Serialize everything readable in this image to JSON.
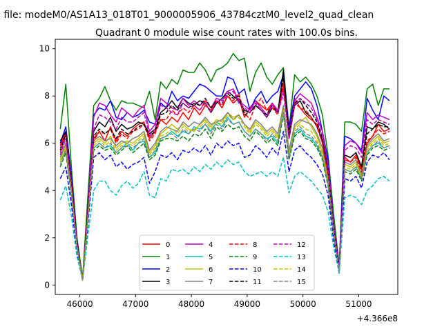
{
  "chart_data": {
    "type": "line",
    "suptitle": "n file: modeM0/AS1A13_018T01_9000005906_43784cztM0_level2_quad_clean",
    "title": "Quadrant 0 module wise count rates with 100.0s bins.",
    "xlabel": "",
    "ylabel": "",
    "x_offset_label": "+4.366e8",
    "xlim": [
      45560,
      51700
    ],
    "ylim": [
      -0.4,
      10.4
    ],
    "x_ticks": [
      {
        "v": 46000,
        "label": "46000"
      },
      {
        "v": 47000,
        "label": "47000"
      },
      {
        "v": 48000,
        "label": "48000"
      },
      {
        "v": 49000,
        "label": "49000"
      },
      {
        "v": 50000,
        "label": "50000"
      },
      {
        "v": 51000,
        "label": "51000"
      }
    ],
    "y_ticks": [
      {
        "v": 0,
        "label": "0"
      },
      {
        "v": 2,
        "label": "2"
      },
      {
        "v": 4,
        "label": "4"
      },
      {
        "v": 6,
        "label": "6"
      },
      {
        "v": 8,
        "label": "8"
      },
      {
        "v": 10,
        "label": "10"
      }
    ],
    "grid": false,
    "legend_placement": "lower-center",
    "x": [
      45650,
      45750,
      45850,
      45950,
      46050,
      46150,
      46250,
      46350,
      46450,
      46550,
      46650,
      46750,
      46850,
      46950,
      47050,
      47150,
      47250,
      47350,
      47450,
      47550,
      47650,
      47750,
      47850,
      47950,
      48050,
      48150,
      48250,
      48350,
      48450,
      48550,
      48650,
      48750,
      48850,
      48950,
      49050,
      49150,
      49250,
      49350,
      49450,
      49550,
      49650,
      49750,
      49850,
      49950,
      50050,
      50150,
      50250,
      50350,
      50450,
      50550,
      50650,
      50750,
      50850,
      50950,
      51050,
      51150,
      51250,
      51350,
      51450,
      51550
    ],
    "series": [
      {
        "name": "0",
        "color": "#ff0000",
        "dash": false,
        "values": [
          5.9,
          6.5,
          4.3,
          1.8,
          0.2,
          3.3,
          6.2,
          6.5,
          6.1,
          6.7,
          6.1,
          6.5,
          6.3,
          6.6,
          6.8,
          6.9,
          6.2,
          6.5,
          7.0,
          6.8,
          7.1,
          6.9,
          7.3,
          7.0,
          7.5,
          7.2,
          7.6,
          7.4,
          7.8,
          7.5,
          8.0,
          7.7,
          7.9,
          7.1,
          7.5,
          7.8,
          7.6,
          7.4,
          7.7,
          7.3,
          8.6,
          6.5,
          7.9,
          7.5,
          7.2,
          7.0,
          6.8,
          6.0,
          4.8,
          2.5,
          0.7,
          5.4,
          5.2,
          5.5,
          4.9,
          6.0,
          6.3,
          6.8,
          6.5,
          6.6
        ]
      },
      {
        "name": "1",
        "color": "#008000",
        "dash": false,
        "values": [
          6.6,
          8.5,
          5.0,
          2.0,
          0.3,
          4.0,
          7.6,
          7.9,
          8.4,
          7.8,
          7.4,
          7.8,
          7.7,
          7.7,
          7.6,
          7.5,
          8.2,
          7.0,
          8.6,
          8.3,
          8.7,
          8.5,
          9.1,
          9.0,
          9.0,
          9.4,
          9.1,
          8.6,
          9.1,
          9.2,
          9.4,
          9.8,
          9.5,
          9.6,
          8.2,
          9.0,
          9.4,
          8.8,
          8.5,
          8.9,
          9.2,
          6.6,
          8.9,
          8.6,
          8.8,
          8.5,
          8.0,
          7.2,
          5.5,
          3.0,
          0.8,
          6.9,
          6.9,
          6.8,
          6.5,
          8.3,
          8.5,
          7.6,
          8.3,
          8.3
        ]
      },
      {
        "name": "2",
        "color": "#0000ff",
        "dash": false,
        "values": [
          6.0,
          6.7,
          4.6,
          1.9,
          0.2,
          3.5,
          7.2,
          7.5,
          7.4,
          7.8,
          7.1,
          7.0,
          7.3,
          7.1,
          7.2,
          7.4,
          6.9,
          6.8,
          7.7,
          7.5,
          8.2,
          7.8,
          8.0,
          7.9,
          8.2,
          8.5,
          8.4,
          8.2,
          8.0,
          8.0,
          8.8,
          8.7,
          8.1,
          8.3,
          7.4,
          7.9,
          8.2,
          7.7,
          8.0,
          8.2,
          8.9,
          6.7,
          8.0,
          8.3,
          8.6,
          8.3,
          7.6,
          6.5,
          5.3,
          2.6,
          0.8,
          6.3,
          6.2,
          6.0,
          5.7,
          7.9,
          7.4,
          7.0,
          8.0,
          7.8
        ]
      },
      {
        "name": "3",
        "color": "#000000",
        "dash": false,
        "values": [
          6.1,
          6.5,
          4.4,
          1.8,
          0.2,
          3.4,
          6.5,
          6.9,
          6.7,
          7.1,
          6.5,
          6.8,
          6.6,
          6.7,
          6.9,
          6.8,
          6.4,
          6.6,
          7.3,
          7.5,
          7.8,
          7.5,
          7.9,
          7.7,
          7.6,
          7.8,
          7.7,
          7.3,
          7.7,
          7.9,
          8.2,
          8.0,
          7.8,
          7.4,
          7.3,
          7.6,
          7.4,
          7.1,
          7.5,
          7.3,
          9.1,
          6.2,
          7.6,
          7.8,
          7.3,
          7.1,
          6.7,
          6.1,
          4.9,
          2.4,
          0.7,
          5.5,
          5.4,
          5.6,
          5.0,
          6.7,
          6.6,
          6.9,
          6.8,
          6.6
        ]
      },
      {
        "name": "4",
        "color": "#bf00bf",
        "dash": false,
        "values": [
          5.8,
          6.4,
          4.4,
          1.8,
          0.2,
          3.4,
          7.1,
          7.7,
          7.6,
          7.2,
          6.9,
          7.5,
          7.3,
          7.1,
          7.4,
          7.6,
          6.5,
          6.8,
          7.9,
          7.7,
          7.5,
          7.4,
          7.9,
          7.6,
          7.8,
          7.6,
          7.8,
          7.5,
          7.9,
          7.8,
          8.2,
          8.3,
          7.8,
          7.6,
          7.4,
          7.8,
          7.5,
          7.2,
          7.7,
          7.4,
          8.3,
          6.4,
          7.8,
          8.1,
          7.9,
          7.7,
          7.1,
          6.5,
          5.1,
          2.6,
          0.7,
          5.9,
          6.1,
          6.0,
          5.6,
          7.3,
          7.0,
          7.2,
          7.1,
          7.0
        ]
      },
      {
        "name": "5",
        "color": "#00bfbf",
        "dash": false,
        "values": [
          5.2,
          5.7,
          3.9,
          1.6,
          0.2,
          3.0,
          5.8,
          6.0,
          5.8,
          5.9,
          5.6,
          5.8,
          6.0,
          5.7,
          6.0,
          6.1,
          5.4,
          5.6,
          6.2,
          6.3,
          6.5,
          6.3,
          6.5,
          6.4,
          6.7,
          6.6,
          6.8,
          6.5,
          6.9,
          6.7,
          7.1,
          6.8,
          6.9,
          6.5,
          6.3,
          6.6,
          6.4,
          6.2,
          6.3,
          6.0,
          7.4,
          5.4,
          6.4,
          6.6,
          6.3,
          6.2,
          5.9,
          5.4,
          4.3,
          2.1,
          0.6,
          4.9,
          4.8,
          5.0,
          4.5,
          5.6,
          5.9,
          6.0,
          5.8,
          5.9
        ]
      },
      {
        "name": "6",
        "color": "#bfbf00",
        "dash": false,
        "values": [
          5.3,
          5.9,
          4.0,
          1.7,
          0.2,
          3.1,
          6.0,
          6.2,
          6.0,
          6.3,
          5.8,
          6.0,
          6.1,
          6.0,
          6.2,
          6.4,
          5.6,
          5.9,
          6.4,
          6.6,
          6.8,
          6.6,
          6.8,
          6.6,
          6.5,
          6.8,
          7.0,
          6.7,
          7.0,
          6.9,
          7.3,
          7.1,
          7.2,
          6.8,
          6.5,
          6.9,
          6.7,
          6.4,
          6.6,
          6.3,
          7.5,
          5.6,
          6.7,
          6.9,
          7.1,
          6.7,
          6.3,
          5.6,
          4.5,
          2.2,
          0.6,
          5.1,
          5.0,
          5.2,
          4.6,
          5.8,
          6.1,
          6.3,
          6.0,
          6.1
        ]
      },
      {
        "name": "7",
        "color": "#808080",
        "dash": false,
        "values": [
          5.4,
          6.0,
          4.1,
          1.7,
          0.2,
          3.1,
          6.1,
          6.3,
          6.1,
          6.2,
          5.9,
          6.1,
          6.0,
          6.2,
          6.3,
          6.5,
          5.7,
          6.0,
          6.5,
          6.7,
          6.6,
          6.5,
          6.9,
          6.7,
          6.9,
          6.8,
          7.1,
          6.8,
          6.9,
          7.0,
          7.3,
          7.0,
          7.2,
          6.8,
          6.6,
          7.0,
          6.8,
          6.5,
          6.7,
          6.4,
          7.6,
          5.7,
          6.8,
          7.0,
          6.9,
          6.8,
          6.4,
          5.8,
          4.6,
          2.3,
          0.6,
          5.2,
          5.1,
          5.3,
          4.7,
          5.9,
          6.2,
          6.4,
          6.1,
          6.2
        ]
      },
      {
        "name": "8",
        "color": "#ff0000",
        "dash": true,
        "values": [
          5.6,
          6.3,
          4.2,
          1.7,
          0.2,
          3.2,
          6.1,
          6.5,
          6.4,
          6.6,
          6.0,
          6.4,
          6.2,
          6.5,
          6.6,
          6.8,
          6.1,
          6.4,
          7.0,
          7.0,
          7.4,
          7.2,
          7.5,
          7.3,
          7.6,
          7.4,
          7.8,
          7.5,
          7.8,
          7.6,
          8.0,
          7.8,
          8.1,
          7.3,
          7.0,
          7.6,
          7.9,
          7.4,
          7.5,
          7.2,
          8.4,
          6.3,
          7.7,
          7.5,
          7.4,
          7.1,
          6.7,
          6.0,
          4.7,
          2.4,
          0.7,
          5.3,
          5.2,
          5.4,
          4.8,
          6.1,
          6.3,
          6.6,
          6.4,
          6.5
        ]
      },
      {
        "name": "9",
        "color": "#008000",
        "dash": true,
        "values": [
          5.0,
          5.6,
          3.8,
          1.6,
          0.2,
          2.9,
          5.7,
          5.9,
          5.7,
          5.8,
          5.5,
          5.7,
          5.9,
          5.6,
          5.8,
          6.0,
          5.3,
          5.5,
          6.1,
          6.2,
          6.2,
          6.1,
          6.3,
          6.1,
          6.4,
          6.3,
          6.6,
          6.2,
          6.7,
          6.5,
          6.8,
          6.6,
          6.7,
          6.3,
          6.1,
          6.5,
          6.3,
          6.0,
          6.2,
          5.9,
          7.2,
          5.3,
          6.3,
          6.5,
          6.2,
          6.1,
          5.8,
          5.3,
          4.2,
          2.1,
          0.6,
          4.8,
          4.7,
          4.9,
          4.4,
          5.5,
          5.8,
          5.9,
          5.7,
          5.8
        ]
      },
      {
        "name": "10",
        "color": "#0000ff",
        "dash": true,
        "values": [
          4.5,
          5.0,
          3.4,
          1.4,
          0.2,
          2.7,
          5.4,
          5.6,
          5.3,
          5.5,
          5.0,
          5.2,
          4.9,
          5.1,
          5.2,
          5.4,
          4.3,
          4.8,
          5.5,
          5.4,
          5.6,
          5.3,
          5.7,
          5.6,
          5.8,
          5.6,
          5.9,
          5.5,
          6.0,
          5.8,
          6.1,
          5.9,
          6.0,
          5.4,
          5.5,
          5.9,
          5.7,
          5.4,
          5.8,
          5.5,
          6.5,
          4.8,
          5.7,
          5.9,
          5.6,
          5.4,
          5.1,
          4.7,
          3.8,
          1.9,
          0.5,
          4.5,
          4.4,
          4.6,
          4.1,
          5.2,
          5.5,
          5.4,
          5.6,
          5.3
        ]
      },
      {
        "name": "11",
        "color": "#000000",
        "dash": true,
        "values": [
          5.7,
          6.4,
          4.3,
          1.8,
          0.2,
          3.3,
          6.3,
          6.6,
          6.4,
          6.6,
          6.2,
          6.6,
          6.4,
          6.5,
          6.7,
          6.8,
          6.3,
          6.5,
          7.2,
          7.3,
          7.6,
          7.4,
          7.7,
          7.5,
          7.7,
          7.6,
          7.9,
          7.5,
          7.8,
          7.7,
          8.1,
          7.9,
          8.0,
          7.2,
          7.3,
          7.6,
          7.4,
          7.2,
          7.6,
          7.3,
          8.8,
          6.4,
          7.7,
          7.9,
          7.6,
          7.3,
          6.9,
          6.2,
          4.9,
          2.5,
          0.7,
          5.5,
          5.4,
          5.6,
          5.0,
          6.4,
          6.6,
          6.8,
          6.7,
          6.7
        ]
      },
      {
        "name": "12",
        "color": "#bf00bf",
        "dash": true,
        "values": [
          5.5,
          6.2,
          4.2,
          1.7,
          0.2,
          3.2,
          6.6,
          7.2,
          7.1,
          6.9,
          6.6,
          7.1,
          6.9,
          6.9,
          7.1,
          7.3,
          6.3,
          6.6,
          7.6,
          7.5,
          7.3,
          7.2,
          7.7,
          7.5,
          7.6,
          7.4,
          7.7,
          7.3,
          7.8,
          7.7,
          8.1,
          8.2,
          7.7,
          7.5,
          7.3,
          7.7,
          7.4,
          7.1,
          7.6,
          7.3,
          8.1,
          6.2,
          7.6,
          7.9,
          7.7,
          7.5,
          7.0,
          6.3,
          5.0,
          2.5,
          0.7,
          5.7,
          5.9,
          5.8,
          5.4,
          7.0,
          6.8,
          7.0,
          6.9,
          6.8
        ]
      },
      {
        "name": "13",
        "color": "#00bfbf",
        "dash": true,
        "values": [
          3.6,
          4.2,
          2.9,
          1.2,
          0.2,
          2.2,
          4.0,
          4.4,
          4.4,
          4.0,
          3.8,
          4.2,
          4.4,
          4.1,
          4.3,
          4.8,
          3.8,
          3.7,
          4.5,
          4.4,
          4.9,
          4.8,
          4.9,
          4.7,
          5.0,
          4.8,
          5.1,
          4.9,
          5.2,
          5.0,
          5.3,
          5.1,
          5.2,
          4.8,
          4.6,
          4.7,
          4.8,
          4.6,
          4.8,
          4.6,
          5.4,
          3.9,
          4.6,
          4.8,
          4.6,
          4.4,
          4.1,
          3.8,
          3.1,
          1.6,
          0.5,
          3.7,
          3.8,
          3.7,
          3.4,
          4.0,
          4.2,
          4.5,
          4.6,
          4.4
        ]
      },
      {
        "name": "14",
        "color": "#bfbf00",
        "dash": true,
        "values": [
          5.2,
          5.8,
          4.0,
          1.6,
          0.2,
          3.0,
          5.9,
          6.1,
          5.9,
          6.1,
          5.7,
          5.9,
          6.0,
          5.9,
          6.1,
          6.3,
          5.5,
          5.8,
          6.3,
          6.4,
          6.6,
          6.4,
          6.7,
          6.5,
          6.6,
          6.7,
          6.9,
          6.6,
          6.9,
          6.8,
          7.2,
          7.0,
          7.1,
          6.7,
          6.4,
          6.8,
          6.6,
          6.3,
          6.5,
          6.2,
          7.4,
          5.5,
          6.6,
          6.8,
          6.6,
          6.5,
          6.1,
          5.5,
          4.4,
          2.2,
          0.6,
          5.0,
          4.9,
          5.1,
          4.5,
          5.7,
          6.0,
          6.2,
          5.9,
          6.0
        ]
      },
      {
        "name": "15",
        "color": "#808080",
        "dash": true,
        "values": [
          5.1,
          5.7,
          3.9,
          1.6,
          0.2,
          3.0,
          5.8,
          6.0,
          5.8,
          6.0,
          5.6,
          5.8,
          5.9,
          5.8,
          6.0,
          6.2,
          5.4,
          5.7,
          6.2,
          6.3,
          6.4,
          6.2,
          6.6,
          6.4,
          6.6,
          6.5,
          6.8,
          6.4,
          6.8,
          6.6,
          7.0,
          6.8,
          6.9,
          6.5,
          6.3,
          6.6,
          6.4,
          6.1,
          6.4,
          6.1,
          7.3,
          5.4,
          6.5,
          6.7,
          6.4,
          6.3,
          6.0,
          5.4,
          4.3,
          2.1,
          0.6,
          4.9,
          4.8,
          5.0,
          4.5,
          5.6,
          5.9,
          6.1,
          5.8,
          5.9
        ]
      }
    ]
  }
}
